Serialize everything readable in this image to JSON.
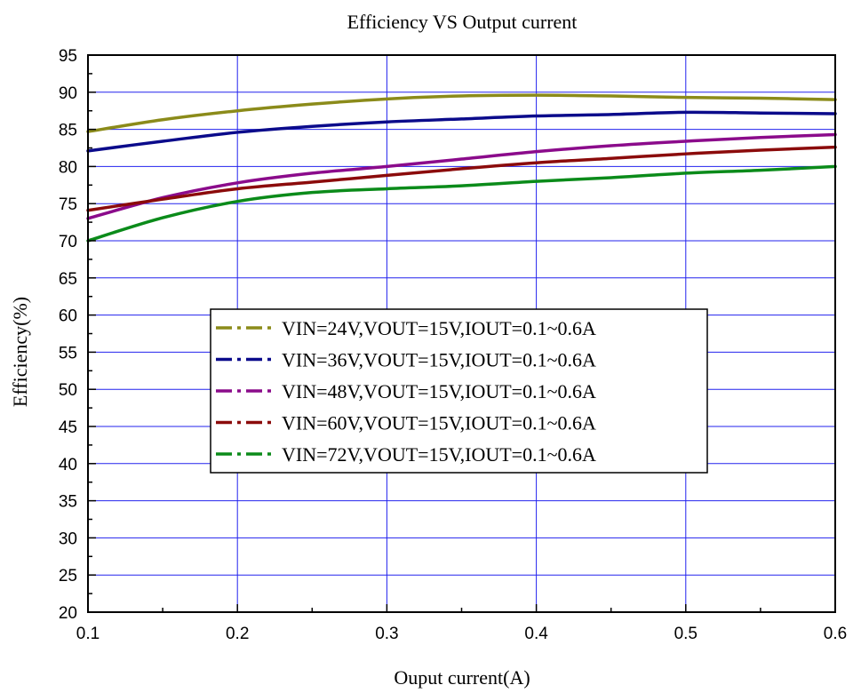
{
  "chart_data": {
    "type": "line",
    "title": "Efficiency VS Output current",
    "xlabel": "Ouput current(A)",
    "ylabel": "Efficiency(%)",
    "xlim": [
      0.1,
      0.6
    ],
    "ylim": [
      20,
      95
    ],
    "x_ticks": [
      "0.1",
      "0.2",
      "0.3",
      "0.4",
      "0.5",
      "0.6"
    ],
    "y_ticks": [
      "20",
      "25",
      "30",
      "35",
      "40",
      "45",
      "50",
      "55",
      "60",
      "65",
      "70",
      "75",
      "80",
      "85",
      "90",
      "95"
    ],
    "grid": true,
    "grid_color": "#2222ee",
    "legend_position": "center",
    "x": [
      0.1,
      0.15,
      0.2,
      0.25,
      0.3,
      0.35,
      0.4,
      0.45,
      0.5,
      0.55,
      0.6
    ],
    "series": [
      {
        "name": "VIN=24V,VOUT=15V,IOUT=0.1~0.6A",
        "color": "#8b8b1a",
        "values": [
          84.7,
          86.3,
          87.5,
          88.4,
          89.1,
          89.5,
          89.6,
          89.5,
          89.3,
          89.2,
          89.0
        ]
      },
      {
        "name": "VIN=36V,VOUT=15V,IOUT=0.1~0.6A",
        "color": "#0b0b8b",
        "values": [
          82.1,
          83.4,
          84.6,
          85.4,
          86.0,
          86.4,
          86.8,
          87.0,
          87.3,
          87.2,
          87.1
        ]
      },
      {
        "name": "VIN=48V,VOUT=15V,IOUT=0.1~0.6A",
        "color": "#8b0b8b",
        "values": [
          73.0,
          75.8,
          77.8,
          79.1,
          80.0,
          81.0,
          82.0,
          82.8,
          83.4,
          83.9,
          84.3
        ]
      },
      {
        "name": "VIN=60V,VOUT=15V,IOUT=0.1~0.6A",
        "color": "#8b0b0b",
        "values": [
          74.1,
          75.6,
          77.0,
          77.9,
          78.8,
          79.7,
          80.5,
          81.1,
          81.7,
          82.2,
          82.6
        ]
      },
      {
        "name": "VIN=72V,VOUT=15V,IOUT=0.1~0.6A",
        "color": "#0b8b1a",
        "values": [
          70.0,
          73.1,
          75.3,
          76.5,
          77.0,
          77.4,
          78.0,
          78.5,
          79.1,
          79.5,
          80.0
        ]
      }
    ]
  }
}
